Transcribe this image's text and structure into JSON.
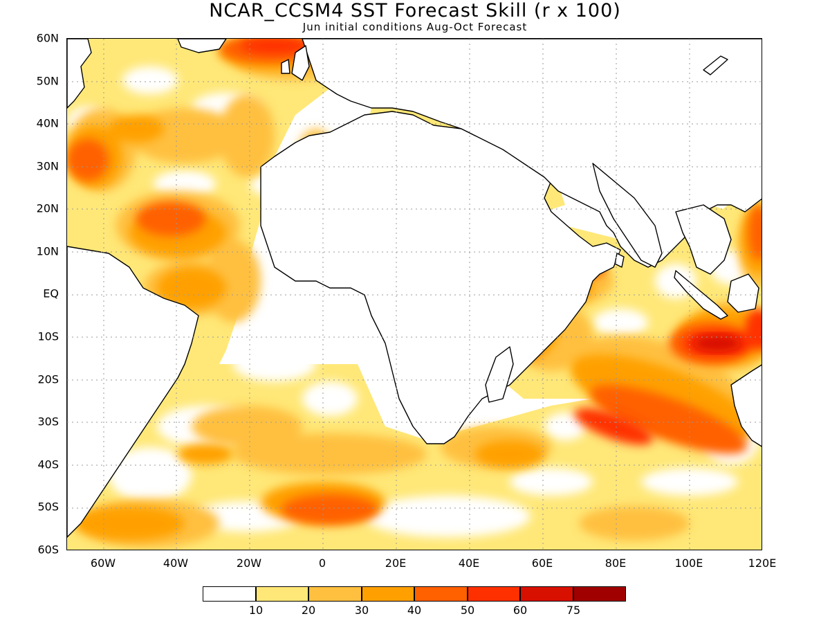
{
  "title": "NCAR_CCSM4 SST Forecast Skill (r x 100)",
  "subtitle": "Jun initial conditions  Aug-Oct Forecast",
  "lat_labels": [
    "60N",
    "50N",
    "40N",
    "30N",
    "20N",
    "10N",
    "EQ",
    "10S",
    "20S",
    "30S",
    "40S",
    "50S",
    "60S"
  ],
  "lon_labels": [
    "60W",
    "40W",
    "20W",
    "0",
    "20E",
    "40E",
    "60E",
    "80E",
    "100E",
    "120E"
  ],
  "colorbar": {
    "colors": [
      "#ffffff",
      "#ffe878",
      "#ffc040",
      "#ffa000",
      "#ff6000",
      "#ff3000",
      "#d81000",
      "#a00000"
    ],
    "labels": [
      "10",
      "20",
      "30",
      "40",
      "50",
      "60",
      "75"
    ]
  }
}
